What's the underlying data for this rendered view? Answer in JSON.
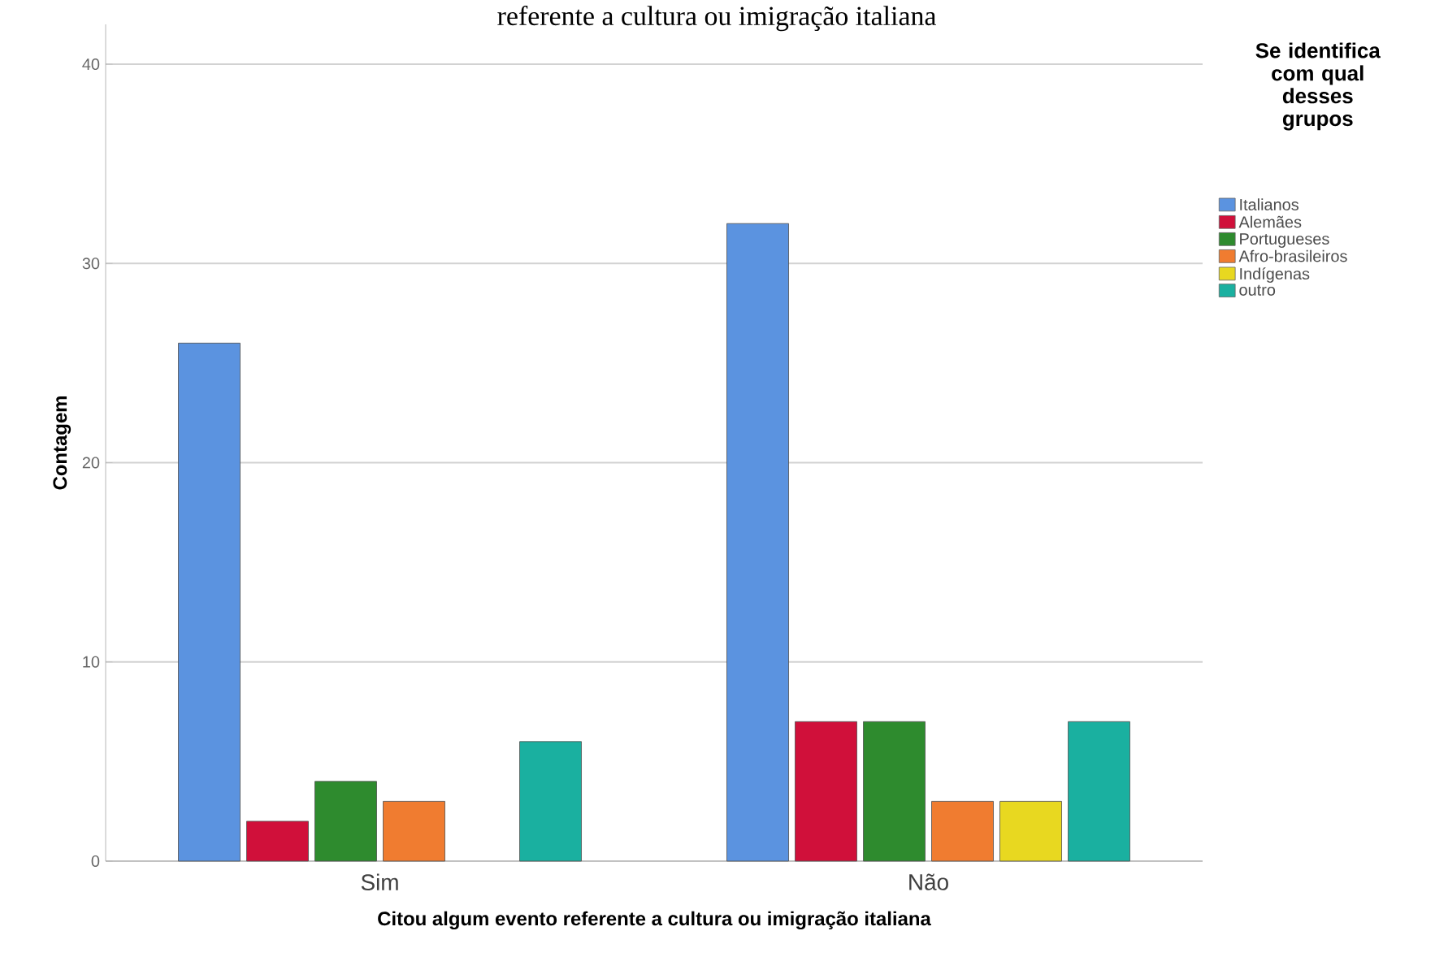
{
  "chart_data": {
    "type": "bar",
    "title": "referente a cultura ou imigração italiana",
    "xlabel": "Citou algum evento referente a cultura ou imigração italiana",
    "ylabel": "Contagem",
    "legend_title": "Se identifica com qual desses grupos",
    "categories": [
      "Sim",
      "Não"
    ],
    "series": [
      {
        "name": "Italianos",
        "color": "#5b93e0",
        "values": [
          26,
          32
        ]
      },
      {
        "name": "Alemães",
        "color": "#d0103a",
        "values": [
          2,
          7
        ]
      },
      {
        "name": "Portugueses",
        "color": "#2e8b2e",
        "values": [
          4,
          7
        ]
      },
      {
        "name": "Afro-brasileiros",
        "color": "#f07c30",
        "values": [
          3,
          3
        ]
      },
      {
        "name": "Indígenas",
        "color": "#e8d820",
        "values": [
          null,
          3
        ]
      },
      {
        "name": "outro",
        "color": "#1ab0a0",
        "values": [
          6,
          7
        ]
      }
    ],
    "ylim": [
      0,
      42
    ],
    "yticks": [
      0,
      10,
      20,
      30,
      40
    ],
    "grid": "y",
    "legend": "top right"
  }
}
